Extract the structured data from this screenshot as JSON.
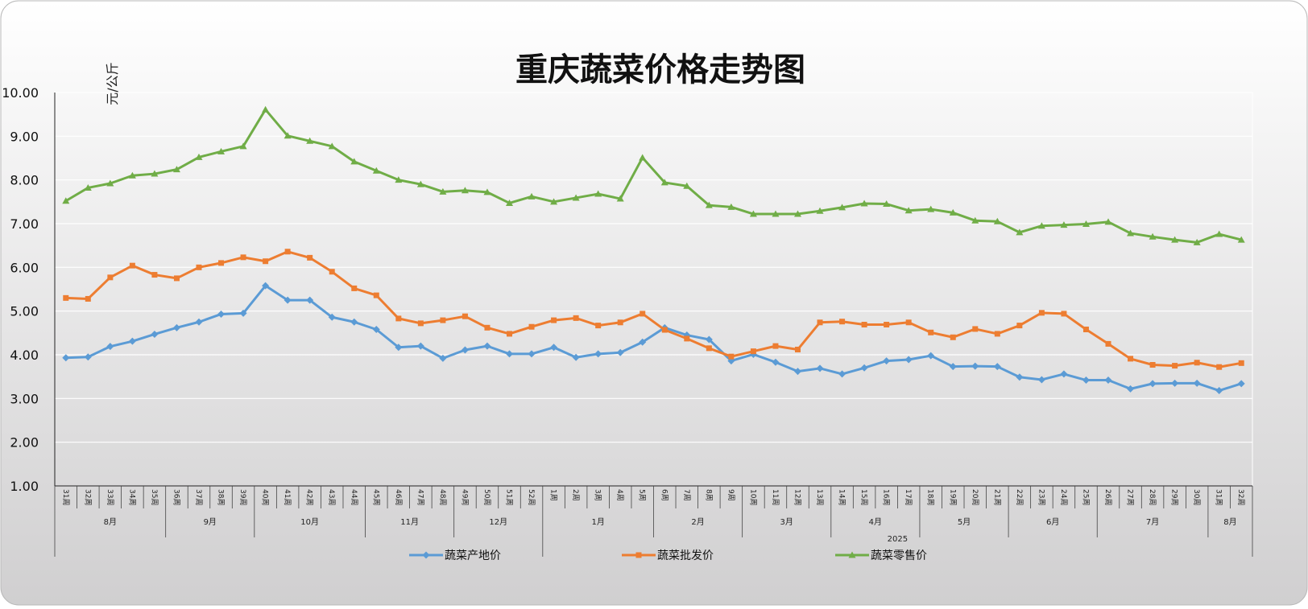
{
  "chart_data": {
    "type": "line",
    "title": "重庆蔬菜价格走势图",
    "ylabel": "元/公斤",
    "ylim": [
      1,
      10
    ],
    "y_ticks": [
      "1.00",
      "2.00",
      "3.00",
      "4.00",
      "5.00",
      "6.00",
      "7.00",
      "8.00",
      "9.00",
      "10.00"
    ],
    "grid": true,
    "legend_position": "bottom",
    "x": [
      "31周",
      "32周",
      "33周",
      "34周",
      "35周",
      "36周",
      "37周",
      "38周",
      "39周",
      "40周",
      "41周",
      "42周",
      "43周",
      "44周",
      "45周",
      "46周",
      "47周",
      "48周",
      "49周",
      "50周",
      "51周",
      "52周",
      "1周",
      "2周",
      "3周",
      "4周",
      "5周",
      "6周",
      "7周",
      "8周",
      "9周",
      "10周",
      "11周",
      "12周",
      "13周",
      "14周",
      "15周",
      "16周",
      "17周",
      "18周",
      "19周",
      "20周",
      "21周",
      "22周",
      "23周",
      "24周",
      "25周",
      "26周",
      "27周",
      "28周",
      "29周",
      "30周",
      "31周",
      "32周"
    ],
    "months": [
      {
        "label": "8月",
        "start": 0,
        "end": 4
      },
      {
        "label": "9月",
        "start": 5,
        "end": 8
      },
      {
        "label": "10月",
        "start": 9,
        "end": 13
      },
      {
        "label": "11月",
        "start": 14,
        "end": 17
      },
      {
        "label": "12月",
        "start": 18,
        "end": 21
      },
      {
        "label": "1月",
        "start": 22,
        "end": 26
      },
      {
        "label": "2月",
        "start": 27,
        "end": 30
      },
      {
        "label": "3月",
        "start": 31,
        "end": 34
      },
      {
        "label": "4月",
        "start": 35,
        "end": 38
      },
      {
        "label": "5月",
        "start": 39,
        "end": 42
      },
      {
        "label": "6月",
        "start": 43,
        "end": 46
      },
      {
        "label": "7月",
        "start": 47,
        "end": 51
      },
      {
        "label": "8月",
        "start": 52,
        "end": 53
      }
    ],
    "years": [
      {
        "label": "",
        "start": 0,
        "end": 21
      },
      {
        "label": "2025",
        "start": 22,
        "end": 53
      }
    ],
    "series": [
      {
        "name": "蔬菜产地价",
        "color": "#5b9bd5",
        "marker": "diamond",
        "values": [
          3.93,
          3.95,
          4.19,
          4.31,
          4.47,
          4.62,
          4.75,
          4.93,
          4.95,
          5.58,
          5.25,
          5.25,
          4.86,
          4.75,
          4.58,
          4.17,
          4.2,
          3.92,
          4.11,
          4.2,
          4.02,
          4.02,
          4.17,
          3.94,
          4.02,
          4.05,
          4.29,
          4.62,
          4.45,
          4.35,
          3.86,
          4.01,
          3.83,
          3.62,
          3.69,
          3.56,
          3.7,
          3.86,
          3.89,
          3.98,
          3.73,
          3.74,
          3.73,
          3.49,
          3.43,
          3.56,
          3.42,
          3.42,
          3.22,
          3.34,
          3.35,
          3.35,
          3.18,
          3.34
        ]
      },
      {
        "name": "蔬菜批发价",
        "color": "#ed7d31",
        "marker": "square",
        "values": [
          5.3,
          5.28,
          5.77,
          6.04,
          5.83,
          5.75,
          6.0,
          6.1,
          6.23,
          6.14,
          6.36,
          6.22,
          5.9,
          5.52,
          5.36,
          4.83,
          4.72,
          4.79,
          4.88,
          4.62,
          4.48,
          4.64,
          4.79,
          4.84,
          4.67,
          4.74,
          4.94,
          4.57,
          4.37,
          4.15,
          3.96,
          4.08,
          4.2,
          4.12,
          4.74,
          4.76,
          4.69,
          4.69,
          4.74,
          4.51,
          4.4,
          4.59,
          4.48,
          4.67,
          4.96,
          4.94,
          4.58,
          4.25,
          3.91,
          3.77,
          3.75,
          3.82,
          3.72,
          3.81
        ]
      },
      {
        "name": "蔬菜零售价",
        "color": "#70ad47",
        "marker": "triangle",
        "values": [
          7.52,
          7.82,
          7.92,
          8.1,
          8.14,
          8.24,
          8.52,
          8.65,
          8.77,
          9.61,
          9.01,
          8.89,
          8.77,
          8.42,
          8.21,
          8.0,
          7.9,
          7.73,
          7.76,
          7.72,
          7.47,
          7.62,
          7.5,
          7.59,
          7.68,
          7.57,
          8.51,
          7.94,
          7.86,
          7.42,
          7.38,
          7.22,
          7.22,
          7.22,
          7.29,
          7.37,
          7.46,
          7.45,
          7.3,
          7.33,
          7.25,
          7.07,
          7.05,
          6.8,
          6.95,
          6.97,
          6.99,
          7.04,
          6.78,
          6.7,
          6.63,
          6.57,
          6.76,
          6.63
        ]
      }
    ]
  }
}
